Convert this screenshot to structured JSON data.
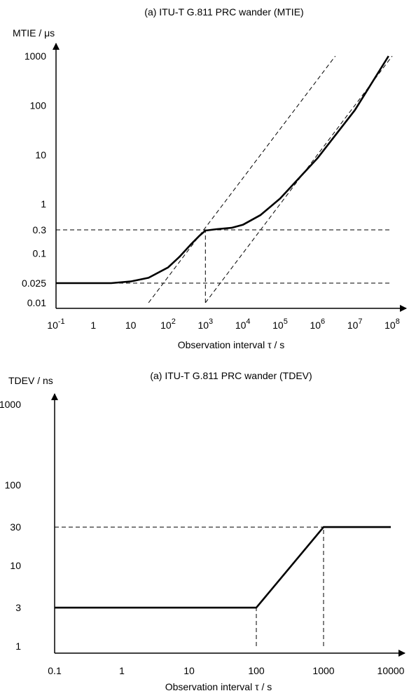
{
  "chart_data": [
    {
      "type": "line",
      "title": "(a) ITU-T G.811 PRC wander (MTIE)",
      "xlabel": "Observation interval τ / s",
      "ylabel": "MTIE / μs",
      "x_scale": "log",
      "y_scale": "log",
      "xlim": [
        0.1,
        100000000
      ],
      "ylim": [
        0.01,
        1000
      ],
      "x_ticks": [
        {
          "value": 0.1,
          "base": "10",
          "exp": "-1"
        },
        {
          "value": 1,
          "base": "1",
          "exp": ""
        },
        {
          "value": 10,
          "base": "10",
          "exp": ""
        },
        {
          "value": 100,
          "base": "10",
          "exp": "2"
        },
        {
          "value": 1000,
          "base": "10",
          "exp": "3"
        },
        {
          "value": 10000,
          "base": "10",
          "exp": "4"
        },
        {
          "value": 100000,
          "base": "10",
          "exp": "5"
        },
        {
          "value": 1000000,
          "base": "10",
          "exp": "6"
        },
        {
          "value": 10000000,
          "base": "10",
          "exp": "7"
        },
        {
          "value": 100000000,
          "base": "10",
          "exp": "8"
        }
      ],
      "y_ticks": [
        {
          "value": 0.01,
          "label": "0.01"
        },
        {
          "value": 0.025,
          "label": "0.025"
        },
        {
          "value": 0.1,
          "label": "0.1"
        },
        {
          "value": 0.3,
          "label": "0.3"
        },
        {
          "value": 1,
          "label": "1"
        },
        {
          "value": 10,
          "label": "10"
        },
        {
          "value": 100,
          "label": "100"
        },
        {
          "value": 1000,
          "label": "1000"
        }
      ],
      "series": [
        {
          "style": "solid",
          "x": [
            0.1,
            1,
            3,
            10,
            30,
            100,
            200,
            400,
            700,
            1000,
            2000,
            5000,
            10000,
            30000,
            100000,
            1000000,
            10000000,
            80000000
          ],
          "y": [
            0.025,
            0.025,
            0.025,
            0.027,
            0.032,
            0.052,
            0.085,
            0.15,
            0.23,
            0.29,
            0.31,
            0.33,
            0.38,
            0.6,
            1.3,
            8.5,
            80,
            1000
          ]
        }
      ],
      "dashed_lines": [
        {
          "x": [
            0.1,
            100000000
          ],
          "y": [
            0.3,
            0.3
          ]
        },
        {
          "x": [
            0.1,
            100000000
          ],
          "y": [
            0.025,
            0.025
          ]
        },
        {
          "x": [
            1000,
            1000
          ],
          "y": [
            0.01,
            0.3
          ]
        },
        {
          "x": [
            30,
            3000000
          ],
          "y": [
            0.01,
            1000
          ]
        },
        {
          "x": [
            1000,
            100000000
          ],
          "y": [
            0.01,
            1000
          ]
        }
      ]
    },
    {
      "type": "line",
      "title": "(a) ITU-T G.811 PRC wander (TDEV)",
      "xlabel": "Observation interval τ / s",
      "ylabel": "TDEV / ns",
      "x_scale": "log",
      "y_scale": "log",
      "xlim": [
        0.1,
        10000
      ],
      "ylim": [
        1,
        1000
      ],
      "x_ticks": [
        {
          "value": 0.1,
          "label": "0.1"
        },
        {
          "value": 1,
          "label": "1"
        },
        {
          "value": 10,
          "label": "10"
        },
        {
          "value": 100,
          "label": "100"
        },
        {
          "value": 1000,
          "label": "1000"
        },
        {
          "value": 10000,
          "label": "10000"
        }
      ],
      "y_ticks": [
        {
          "value": 1,
          "label": "1"
        },
        {
          "value": 3,
          "label": "3"
        },
        {
          "value": 10,
          "label": "10"
        },
        {
          "value": 30,
          "label": "30"
        },
        {
          "value": 100,
          "label": "100"
        },
        {
          "value": 1000,
          "label": "1000"
        }
      ],
      "series": [
        {
          "style": "solid",
          "x": [
            0.1,
            100,
            1000,
            10000
          ],
          "y": [
            3,
            3,
            30,
            30
          ]
        }
      ],
      "dashed_lines": [
        {
          "x": [
            100,
            100
          ],
          "y": [
            1,
            3
          ]
        },
        {
          "x": [
            1000,
            1000
          ],
          "y": [
            1,
            30
          ]
        },
        {
          "x": [
            0.1,
            1000
          ],
          "y": [
            30,
            30
          ]
        }
      ]
    }
  ]
}
